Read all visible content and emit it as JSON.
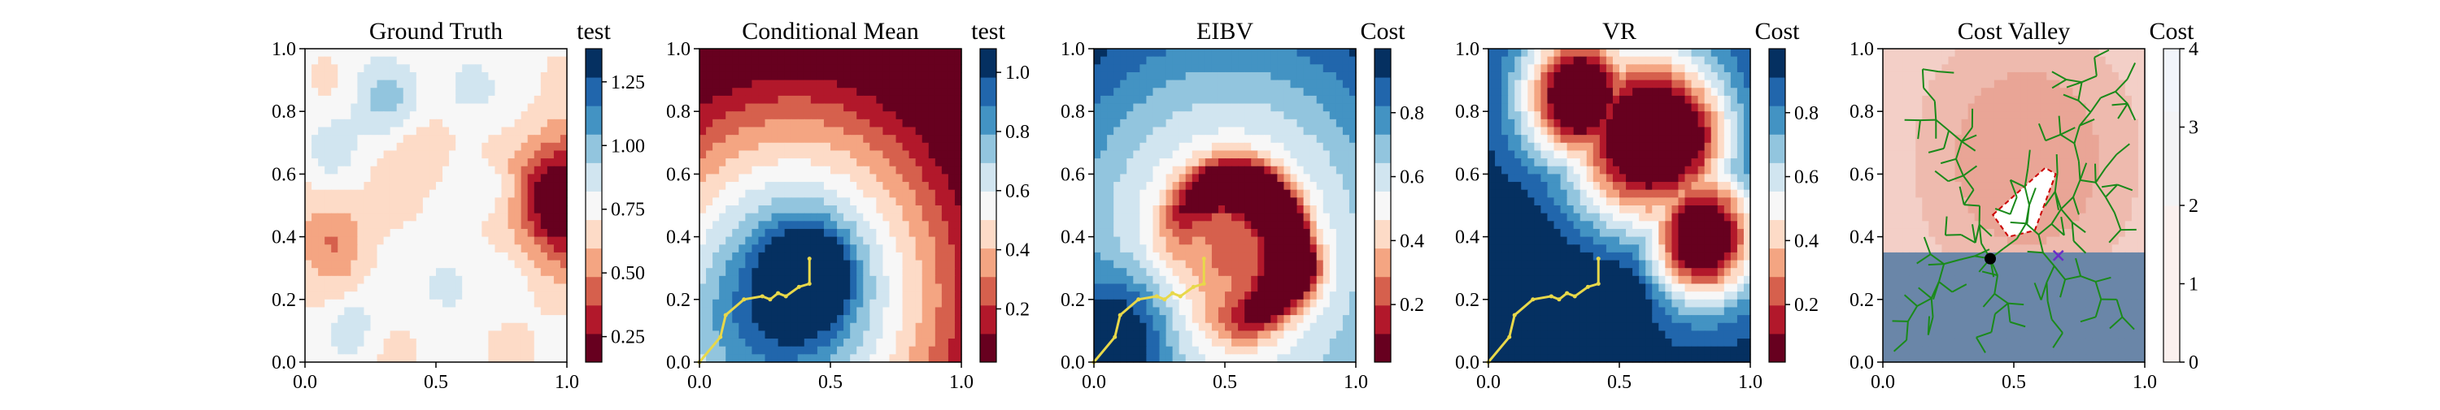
{
  "colors": {
    "rdbu": [
      "#67001f",
      "#b2182b",
      "#d6604d",
      "#f4a582",
      "#fddbc7",
      "#f7f7f7",
      "#d1e5f0",
      "#92c5de",
      "#4393c3",
      "#2166ac",
      "#053061"
    ],
    "path": "#e8d84a",
    "tree": "#1a8a1a",
    "robot": "#000000",
    "target": "#6a2cc8",
    "boundary": "#cc0000",
    "costmap_low": "#fbf0ee",
    "costmap_high": "#e9a596",
    "obstacle": "#ffffff",
    "forbidden": "#6a86a8"
  },
  "chart_data": [
    {
      "type": "heatmap",
      "title": "Ground Truth",
      "colorbar_label": "test",
      "colorbar_ticks": [
        "0.25",
        "0.50",
        "0.75",
        "1.00",
        "1.25"
      ],
      "colorbar_range": [
        0.15,
        1.38
      ],
      "x_ticks": [
        "0.0",
        "0.5",
        "1.0"
      ],
      "y_ticks": [
        "0.0",
        "0.2",
        "0.4",
        "0.6",
        "0.8",
        "1.0"
      ],
      "xlim": [
        0,
        1
      ],
      "ylim": [
        0,
        1
      ]
    },
    {
      "type": "heatmap",
      "title": "Conditional Mean",
      "colorbar_label": "test",
      "colorbar_ticks": [
        "0.2",
        "0.4",
        "0.6",
        "0.8",
        "1.0"
      ],
      "colorbar_range": [
        0.02,
        1.08
      ],
      "x_ticks": [
        "0.0",
        "0.5",
        "1.0"
      ],
      "y_ticks": [
        "0.0",
        "0.2",
        "0.4",
        "0.6",
        "0.8",
        "1.0"
      ],
      "xlim": [
        0,
        1
      ],
      "ylim": [
        0,
        1
      ],
      "path": [
        [
          0.0,
          0.0
        ],
        [
          0.08,
          0.08
        ],
        [
          0.1,
          0.15
        ],
        [
          0.17,
          0.2
        ],
        [
          0.24,
          0.21
        ],
        [
          0.27,
          0.2
        ],
        [
          0.3,
          0.22
        ],
        [
          0.33,
          0.21
        ],
        [
          0.38,
          0.24
        ],
        [
          0.42,
          0.25
        ],
        [
          0.42,
          0.33
        ]
      ]
    },
    {
      "type": "heatmap",
      "title": "EIBV",
      "colorbar_label": "Cost",
      "colorbar_ticks": [
        "0.2",
        "0.4",
        "0.6",
        "0.8"
      ],
      "colorbar_range": [
        0.02,
        1.0
      ],
      "x_ticks": [
        "0.0",
        "0.5",
        "1.0"
      ],
      "y_ticks": [
        "0.0",
        "0.2",
        "0.4",
        "0.6",
        "0.8",
        "1.0"
      ],
      "xlim": [
        0,
        1
      ],
      "ylim": [
        0,
        1
      ],
      "path": [
        [
          0.0,
          0.0
        ],
        [
          0.08,
          0.08
        ],
        [
          0.1,
          0.15
        ],
        [
          0.17,
          0.2
        ],
        [
          0.24,
          0.21
        ],
        [
          0.27,
          0.2
        ],
        [
          0.3,
          0.22
        ],
        [
          0.33,
          0.21
        ],
        [
          0.38,
          0.24
        ],
        [
          0.42,
          0.25
        ],
        [
          0.42,
          0.33
        ]
      ]
    },
    {
      "type": "heatmap",
      "title": "VR",
      "colorbar_label": "Cost",
      "colorbar_ticks": [
        "0.2",
        "0.4",
        "0.6",
        "0.8"
      ],
      "colorbar_range": [
        0.02,
        1.0
      ],
      "x_ticks": [
        "0.0",
        "0.5",
        "1.0"
      ],
      "y_ticks": [
        "0.0",
        "0.2",
        "0.4",
        "0.6",
        "0.8",
        "1.0"
      ],
      "xlim": [
        0,
        1
      ],
      "ylim": [
        0,
        1
      ],
      "path": [
        [
          0.0,
          0.0
        ],
        [
          0.08,
          0.08
        ],
        [
          0.1,
          0.15
        ],
        [
          0.17,
          0.2
        ],
        [
          0.24,
          0.21
        ],
        [
          0.27,
          0.2
        ],
        [
          0.3,
          0.22
        ],
        [
          0.33,
          0.21
        ],
        [
          0.38,
          0.24
        ],
        [
          0.42,
          0.25
        ],
        [
          0.42,
          0.33
        ]
      ]
    },
    {
      "type": "heatmap",
      "title": "Cost Valley",
      "colorbar_label": "Cost",
      "colorbar_ticks": [
        "0",
        "1",
        "2",
        "3",
        "4"
      ],
      "colorbar_range": [
        0,
        4
      ],
      "x_ticks": [
        "0.0",
        "0.5",
        "1.0"
      ],
      "y_ticks": [
        "0.0",
        "0.2",
        "0.4",
        "0.6",
        "0.8",
        "1.0"
      ],
      "xlim": [
        0,
        1
      ],
      "ylim": [
        0,
        1
      ],
      "robot": [
        0.41,
        0.33
      ],
      "target": [
        0.67,
        0.34
      ],
      "forbidden_below": 0.36,
      "obstacle": [
        [
          0.42,
          0.47
        ],
        [
          0.62,
          0.62
        ],
        [
          0.66,
          0.6
        ],
        [
          0.58,
          0.42
        ],
        [
          0.48,
          0.4
        ]
      ]
    }
  ]
}
